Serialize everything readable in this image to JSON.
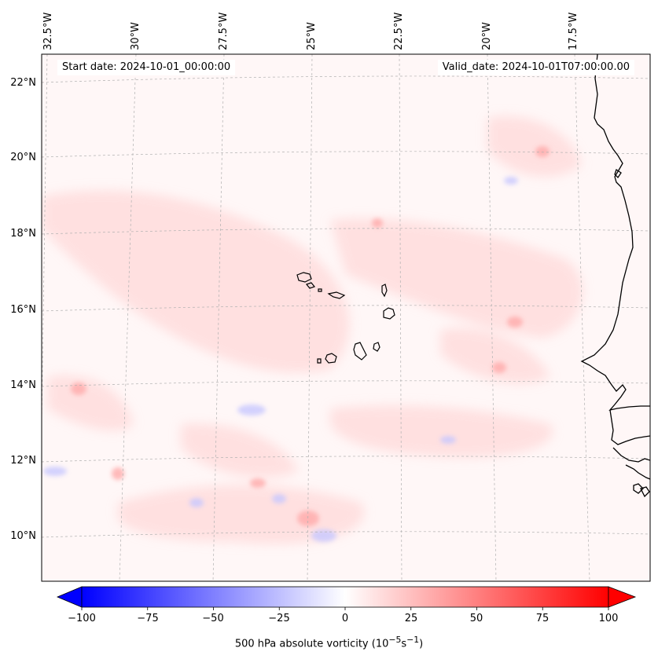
{
  "map": {
    "variable": "500 hPa absolute vorticity",
    "units_html": "500 hPa absolute vorticity (10<sup>−5</sup>s<sup>−1</sup>)",
    "start_label": "Start date: 2024-10-01_00:00:00",
    "valid_label": "Valid_date: 2024-10-01T07:00:00.00",
    "longitude_labels": [
      "32.5°W",
      "30°W",
      "27.5°W",
      "25°W",
      "22.5°W",
      "20°W",
      "17.5°W"
    ],
    "latitude_labels": [
      "22°N",
      "20°N",
      "18°N",
      "16°N",
      "14°N",
      "12°N",
      "10°N"
    ],
    "colorbar": {
      "min": -100,
      "max": 100,
      "ticks": [
        "−100",
        "−75",
        "−50",
        "−25",
        "0",
        "25",
        "50",
        "75",
        "100"
      ],
      "tick_values": [
        -100,
        -75,
        -50,
        -25,
        0,
        25,
        50,
        75,
        100
      ],
      "colors": {
        "low": "#0000ff",
        "mid": "#ffffff",
        "high": "#ff0000"
      }
    },
    "coastline_color": "#000000",
    "gridline_color": "#b0b0b0"
  }
}
